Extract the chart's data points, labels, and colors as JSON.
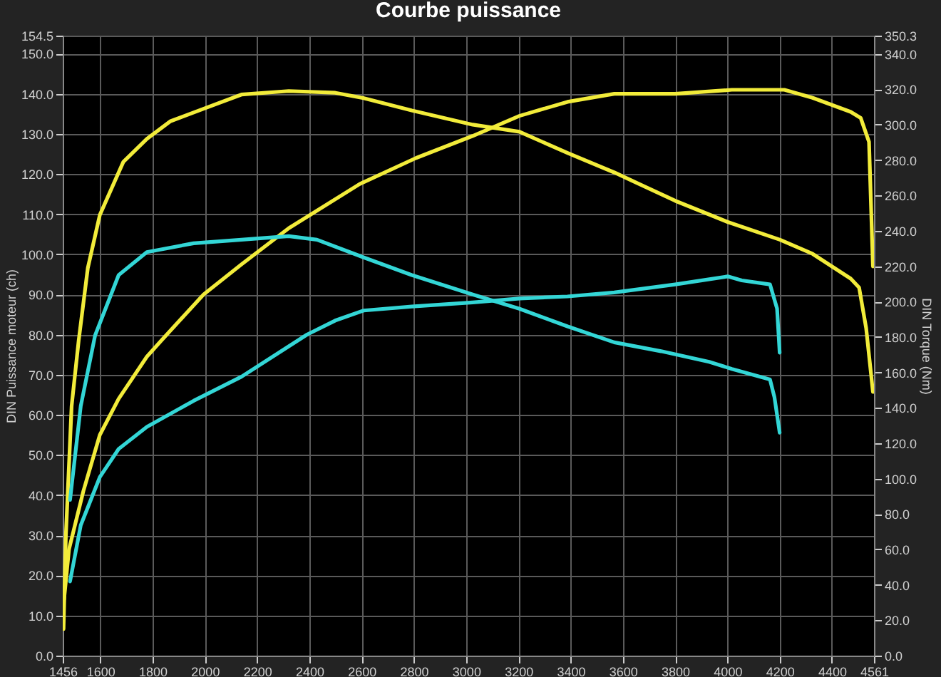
{
  "chart_data": {
    "type": "line",
    "title": "Courbe puissance",
    "ylabel": "DIN Puissance moteur (ch)",
    "y2label": "DIN Torque (Nm)",
    "xlim": [
      1456,
      4561
    ],
    "xticks": [
      1456,
      1600,
      1800,
      2000,
      2200,
      2400,
      2600,
      2800,
      3000,
      3200,
      3400,
      3600,
      3800,
      4000,
      4200,
      4400,
      4561
    ],
    "ylim": [
      0,
      154.5
    ],
    "yticks": [
      {
        "value": 0,
        "label": "0.0"
      },
      {
        "value": 10,
        "label": "10.0"
      },
      {
        "value": 20,
        "label": "20.0"
      },
      {
        "value": 30,
        "label": "30.0"
      },
      {
        "value": 40,
        "label": "40.0"
      },
      {
        "value": 50,
        "label": "50.0"
      },
      {
        "value": 60,
        "label": "60.0"
      },
      {
        "value": 70,
        "label": "70.0"
      },
      {
        "value": 80,
        "label": "80.0"
      },
      {
        "value": 90,
        "label": "90.0"
      },
      {
        "value": 100,
        "label": "100.0"
      },
      {
        "value": 110,
        "label": "110.0"
      },
      {
        "value": 120,
        "label": "120.0"
      },
      {
        "value": 130,
        "label": "130.0"
      },
      {
        "value": 140,
        "label": "140.0"
      },
      {
        "value": 150,
        "label": "150.0"
      },
      {
        "value": 154.5,
        "label": "154.5"
      }
    ],
    "y2lim": [
      0,
      350.3
    ],
    "y2ticks": [
      {
        "value": 0,
        "label": "0.0"
      },
      {
        "value": 20,
        "label": "20.0"
      },
      {
        "value": 40,
        "label": "40.0"
      },
      {
        "value": 60,
        "label": "60.0"
      },
      {
        "value": 80,
        "label": "80.0"
      },
      {
        "value": 100,
        "label": "100.0"
      },
      {
        "value": 120,
        "label": "120.0"
      },
      {
        "value": 140,
        "label": "140.0"
      },
      {
        "value": 160,
        "label": "160.0"
      },
      {
        "value": 180,
        "label": "180.0"
      },
      {
        "value": 200,
        "label": "200.0"
      },
      {
        "value": 220,
        "label": "220.0"
      },
      {
        "value": 240,
        "label": "240.0"
      },
      {
        "value": 260,
        "label": "260.0"
      },
      {
        "value": 280,
        "label": "280.0"
      },
      {
        "value": 300,
        "label": "300.0"
      },
      {
        "value": 320,
        "label": "320.0"
      },
      {
        "value": 340,
        "label": "340.0"
      },
      {
        "value": 350.3,
        "label": "350.3"
      }
    ],
    "grid": true,
    "series": [
      {
        "color": "#f2ec3a",
        "axis": "y2",
        "x": [
          1459,
          1468,
          1490,
          1517,
          1552,
          1598,
          1688,
          1778,
          1869,
          1995,
          2140,
          2321,
          2499,
          2608,
          2792,
          3025,
          3204,
          3388,
          3567,
          3800,
          4001,
          4201,
          4326,
          4472,
          4504,
          4531,
          4557
        ],
        "values": [
          15,
          68,
          141,
          178,
          219,
          249,
          279,
          292,
          302,
          309,
          317,
          319,
          318,
          315,
          308,
          300,
          296,
          284,
          273,
          257,
          245,
          235,
          227,
          213,
          208,
          185,
          149
        ]
      },
      {
        "color": "#f2ec3a",
        "x": [
          1461,
          1480,
          1535,
          1598,
          1670,
          1778,
          1833,
          1995,
          2140,
          2321,
          2592,
          2808,
          3025,
          3204,
          3388,
          3567,
          3800,
          4017,
          4218,
          4326,
          4472,
          4510,
          4542,
          4557
        ],
        "values": [
          14,
          26.5,
          41,
          55,
          64,
          74.5,
          78.5,
          90,
          97.5,
          106.5,
          117.5,
          124,
          129.5,
          134.5,
          138,
          140,
          140,
          141,
          141,
          139,
          135.5,
          134,
          128,
          97
        ]
      },
      {
        "color": "#33d6d6",
        "axis": "y2",
        "x": [
          1484,
          1525,
          1580,
          1670,
          1778,
          1957,
          2140,
          2321,
          2429,
          2608,
          2792,
          3025,
          3204,
          3388,
          3567,
          3746,
          3930,
          4017,
          4163,
          4180,
          4200
        ],
        "values": [
          88,
          141,
          181,
          215,
          228,
          233,
          235,
          237,
          235,
          225,
          215,
          204,
          196,
          186,
          177,
          172,
          166,
          162,
          156,
          146,
          126
        ]
      },
      {
        "color": "#33d6d6",
        "x": [
          1484,
          1525,
          1598,
          1670,
          1778,
          1957,
          2140,
          2391,
          2499,
          2608,
          2792,
          3025,
          3204,
          3388,
          3567,
          3800,
          4001,
          4055,
          4163,
          4190,
          4200
        ],
        "values": [
          18.5,
          32.5,
          44.5,
          51.5,
          57,
          63.5,
          69.5,
          80,
          83.5,
          86,
          87,
          88,
          89,
          89.5,
          90.5,
          92.5,
          94.5,
          93.5,
          92.5,
          86.5,
          75.5
        ]
      }
    ]
  }
}
